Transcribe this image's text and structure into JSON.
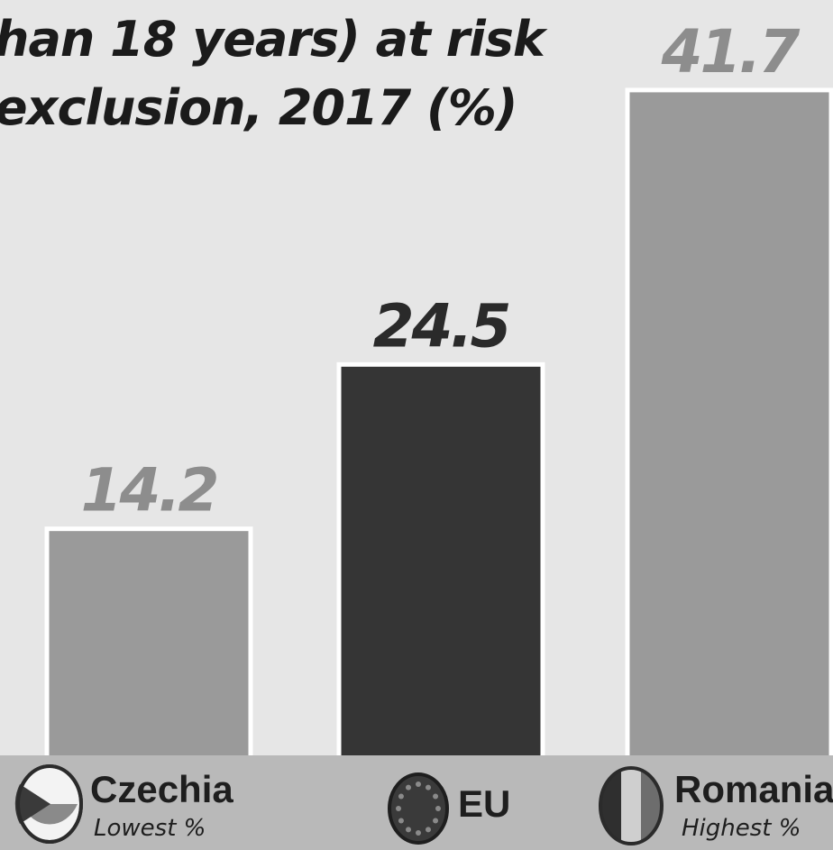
{
  "chart_data": {
    "type": "bar",
    "title_lines": [
      "han 18 years) at risk",
      "exclusion, 2017 (%)"
    ],
    "categories": [
      "Czechia",
      "EU",
      "Romania"
    ],
    "values": [
      14.2,
      24.5,
      41.7
    ],
    "value_labels": [
      "14.2",
      "24.5",
      "41.7"
    ],
    "category_notes": [
      "Lowest %",
      "",
      "Highest %"
    ],
    "bar_colors": [
      "#9a9a9a",
      "#353535",
      "#9a9a9a"
    ],
    "label_colors": [
      "#8d8d8d",
      "#2a2a2a",
      "#8d8d8d"
    ],
    "grid": false,
    "legend": "none"
  },
  "icons": [
    "czechia-flag-icon",
    "eu-flag-icon",
    "romania-flag-icon"
  ]
}
